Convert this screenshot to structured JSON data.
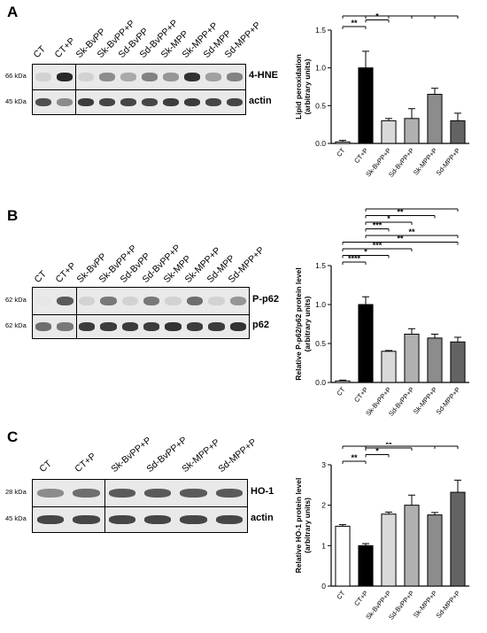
{
  "panels": {
    "A": {
      "letter": "A",
      "lanes": [
        "CT",
        "CT+P",
        "Sk-BvPP",
        "Sk-BvPP+P",
        "Sd-BvPP",
        "Sd-BvPP+P",
        "Sk-MPP",
        "Sk-MPP+P",
        "Sd-MPP",
        "Sd-MPP+P"
      ],
      "blots": [
        {
          "kda": "66 kDa",
          "protein": "4-HNE",
          "intensities": [
            0.1,
            0.95,
            0.1,
            0.45,
            0.3,
            0.5,
            0.4,
            0.9,
            0.35,
            0.5
          ]
        },
        {
          "kda": "45 kDa",
          "protein": "actin",
          "intensities": [
            0.75,
            0.45,
            0.85,
            0.8,
            0.8,
            0.8,
            0.85,
            0.85,
            0.8,
            0.8
          ]
        }
      ]
    },
    "B": {
      "letter": "B",
      "lanes": [
        "CT",
        "CT+P",
        "Sk-BvPP",
        "Sk-BvPP+P",
        "Sd-BvPP",
        "Sd-BvPP+P",
        "Sk-MPP",
        "Sk-MPP+P",
        "Sd-MPP",
        "Sd-MPP+P"
      ],
      "blots": [
        {
          "kda": "62 kDa",
          "protein": "P-p62",
          "intensities": [
            0.0,
            0.7,
            0.1,
            0.55,
            0.1,
            0.55,
            0.1,
            0.6,
            0.1,
            0.4
          ]
        },
        {
          "kda": "62 kDa",
          "protein": "p62",
          "intensities": [
            0.6,
            0.55,
            0.85,
            0.85,
            0.85,
            0.85,
            0.9,
            0.85,
            0.85,
            0.9
          ]
        }
      ]
    },
    "C": {
      "letter": "C",
      "lanes": [
        "CT",
        "CT+P",
        "Sk-BvPP+P",
        "Sd-BvPP+P",
        "Sk-MPP+P",
        "Sd-MPP+P"
      ],
      "blots": [
        {
          "kda": "28 kDa",
          "protein": "HO-1",
          "intensities": [
            0.45,
            0.6,
            0.7,
            0.7,
            0.7,
            0.7
          ]
        },
        {
          "kda": "45 kDa",
          "protein": "actin",
          "intensities": [
            0.8,
            0.8,
            0.8,
            0.8,
            0.8,
            0.8
          ]
        }
      ]
    }
  },
  "chart_data": [
    {
      "type": "bar",
      "categories": [
        "CT",
        "CT+P",
        "Sk-BvPP+P",
        "Sd-BvPP+P",
        "Sk-MPP+P",
        "Sd-MPP+P"
      ],
      "values": [
        0.02,
        1.0,
        0.3,
        0.33,
        0.65,
        0.3
      ],
      "errors": [
        0.02,
        0.22,
        0.03,
        0.13,
        0.08,
        0.1
      ],
      "colors": [
        "#ffffff",
        "#000000",
        "#d9d9d9",
        "#b0b0b0",
        "#8c8c8c",
        "#636363"
      ],
      "ylabel": [
        "Lipid peroxidation",
        "(arbitrary units)"
      ],
      "ylim": [
        0,
        1.5
      ],
      "ticks": [
        "0.0",
        "0.5",
        "1.0",
        "1.5"
      ],
      "significance": [
        {
          "from": 0,
          "to": 1,
          "label": "**"
        },
        {
          "from": 1,
          "to": 2,
          "label": "*"
        },
        {
          "from": 1,
          "to": 3,
          "label": "*"
        },
        {
          "from": 1,
          "to": 4,
          "label": "*"
        },
        {
          "from": 1,
          "to": 5,
          "label": "*"
        },
        {
          "from": 2,
          "to": 4,
          "label": "*"
        },
        {
          "from": 3,
          "to": 4,
          "label": "*"
        },
        {
          "from": 4,
          "to": 5,
          "label": "*"
        },
        {
          "from": 0,
          "to": 4,
          "label": "*"
        }
      ]
    },
    {
      "type": "bar",
      "categories": [
        "CT",
        "CT+P",
        "Sk-BvPP+P",
        "Sd-BvPP+P",
        "Sk-MPP+P",
        "Sd-MPP+P"
      ],
      "values": [
        0.02,
        1.0,
        0.4,
        0.62,
        0.57,
        0.52
      ],
      "errors": [
        0.01,
        0.1,
        0.01,
        0.07,
        0.05,
        0.06
      ],
      "colors": [
        "#ffffff",
        "#000000",
        "#d9d9d9",
        "#b0b0b0",
        "#8c8c8c",
        "#636363"
      ],
      "ylabel": [
        "Relative P-p62/p62 protein level",
        "(arbitrary units)"
      ],
      "ylim": [
        0,
        1.5
      ],
      "ticks": [
        "0.0",
        "0.5",
        "1.0",
        "1.5"
      ],
      "significance": [
        {
          "from": 0,
          "to": 1,
          "label": "****"
        },
        {
          "from": 0,
          "to": 2,
          "label": "*"
        },
        {
          "from": 0,
          "to": 3,
          "label": "***"
        },
        {
          "from": 0,
          "to": 5,
          "label": "**"
        },
        {
          "from": 1,
          "to": 5,
          "label": "**"
        },
        {
          "from": 1,
          "to": 2,
          "label": "***"
        },
        {
          "from": 1,
          "to": 3,
          "label": "*"
        },
        {
          "from": 1,
          "to": 4,
          "label": "**"
        },
        {
          "from": 1,
          "to": 5,
          "label": "**"
        }
      ]
    },
    {
      "type": "bar",
      "categories": [
        "CT",
        "CT+P",
        "Sk-BvPP+P",
        "Sd-BvPP+P",
        "Sk-MPP+P",
        "Sd-MPP+P"
      ],
      "values": [
        1.48,
        1.0,
        1.78,
        2.0,
        1.76,
        2.32
      ],
      "errors": [
        0.04,
        0.05,
        0.05,
        0.25,
        0.06,
        0.3
      ],
      "colors": [
        "#ffffff",
        "#000000",
        "#d9d9d9",
        "#b0b0b0",
        "#8c8c8c",
        "#636363"
      ],
      "ylabel": [
        "Relative HO-1 protein level",
        "(arbitrary units)"
      ],
      "ylim": [
        0,
        3
      ],
      "ticks": [
        "0",
        "1",
        "2",
        "3"
      ],
      "significance": [
        {
          "from": 0,
          "to": 1,
          "label": "**"
        },
        {
          "from": 1,
          "to": 2,
          "label": "*"
        },
        {
          "from": 1,
          "to": 3,
          "label": "**"
        },
        {
          "from": 1,
          "to": 4,
          "label": "*"
        },
        {
          "from": 1,
          "to": 5,
          "label": "**"
        },
        {
          "from": 0,
          "to": 5,
          "label": "*"
        }
      ]
    }
  ]
}
